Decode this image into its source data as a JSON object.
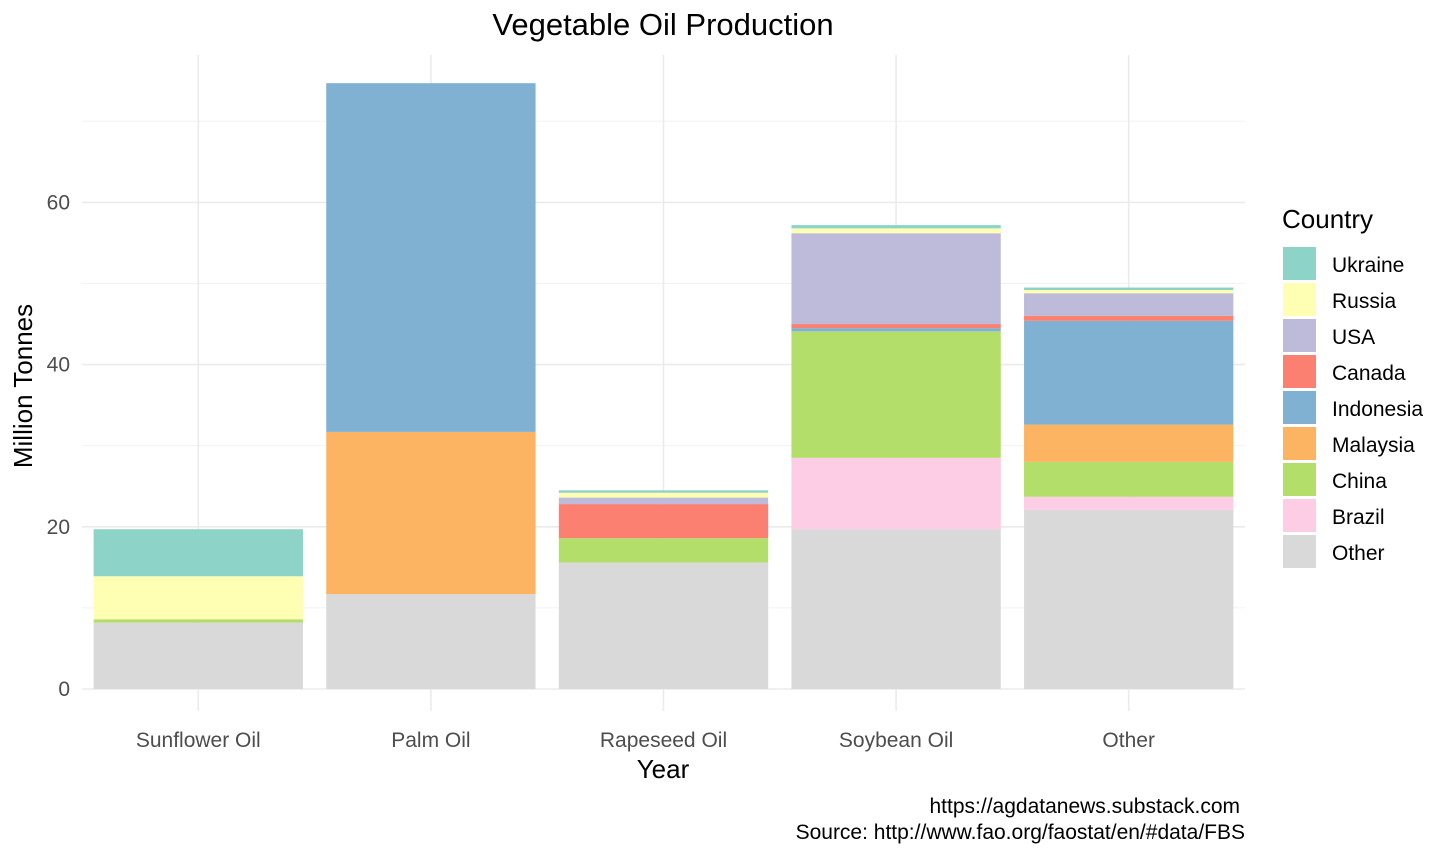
{
  "chart_data": {
    "type": "bar",
    "stacked": true,
    "title": "Vegetable Oil Production",
    "xlabel": "Year",
    "ylabel": "Million Tonnes",
    "ylim": [
      0,
      78
    ],
    "yticks": [
      0,
      20,
      40,
      60
    ],
    "grid": true,
    "legend": {
      "title": "Country",
      "position": "right"
    },
    "categories": [
      "Sunflower Oil",
      "Palm Oil",
      "Rapeseed Oil",
      "Soybean Oil",
      "Other"
    ],
    "series": [
      {
        "name": "Other",
        "color": "#D9D9D9",
        "values": [
          8.2,
          11.7,
          15.6,
          19.7,
          22.1
        ]
      },
      {
        "name": "Brazil",
        "color": "#FCCDE5",
        "values": [
          0.0,
          0.0,
          0.0,
          8.8,
          1.6
        ]
      },
      {
        "name": "China",
        "color": "#B3DE69",
        "values": [
          0.4,
          0.0,
          3.0,
          15.6,
          4.3
        ]
      },
      {
        "name": "Malaysia",
        "color": "#FDB462",
        "values": [
          0.0,
          20.0,
          0.0,
          0.0,
          4.6
        ]
      },
      {
        "name": "Indonesia",
        "color": "#80B1D3",
        "values": [
          0.0,
          43.0,
          0.0,
          0.4,
          12.8
        ]
      },
      {
        "name": "Canada",
        "color": "#FB8072",
        "values": [
          0.0,
          0.0,
          4.2,
          0.5,
          0.6
        ]
      },
      {
        "name": "USA",
        "color": "#BEBADA",
        "values": [
          0.0,
          0.0,
          0.8,
          11.2,
          2.8
        ]
      },
      {
        "name": "Russia",
        "color": "#FFFFB3",
        "values": [
          5.3,
          0.0,
          0.6,
          0.6,
          0.4
        ]
      },
      {
        "name": "Ukraine",
        "color": "#8DD3C7",
        "values": [
          5.8,
          0.0,
          0.3,
          0.4,
          0.3
        ]
      }
    ],
    "legend_order": [
      "Ukraine",
      "Russia",
      "USA",
      "Canada",
      "Indonesia",
      "Malaysia",
      "China",
      "Brazil",
      "Other"
    ]
  },
  "caption": {
    "line1": "https://agdatanews.substack.com",
    "line2": "Source: http://www.fao.org/faostat/en/#data/FBS"
  }
}
